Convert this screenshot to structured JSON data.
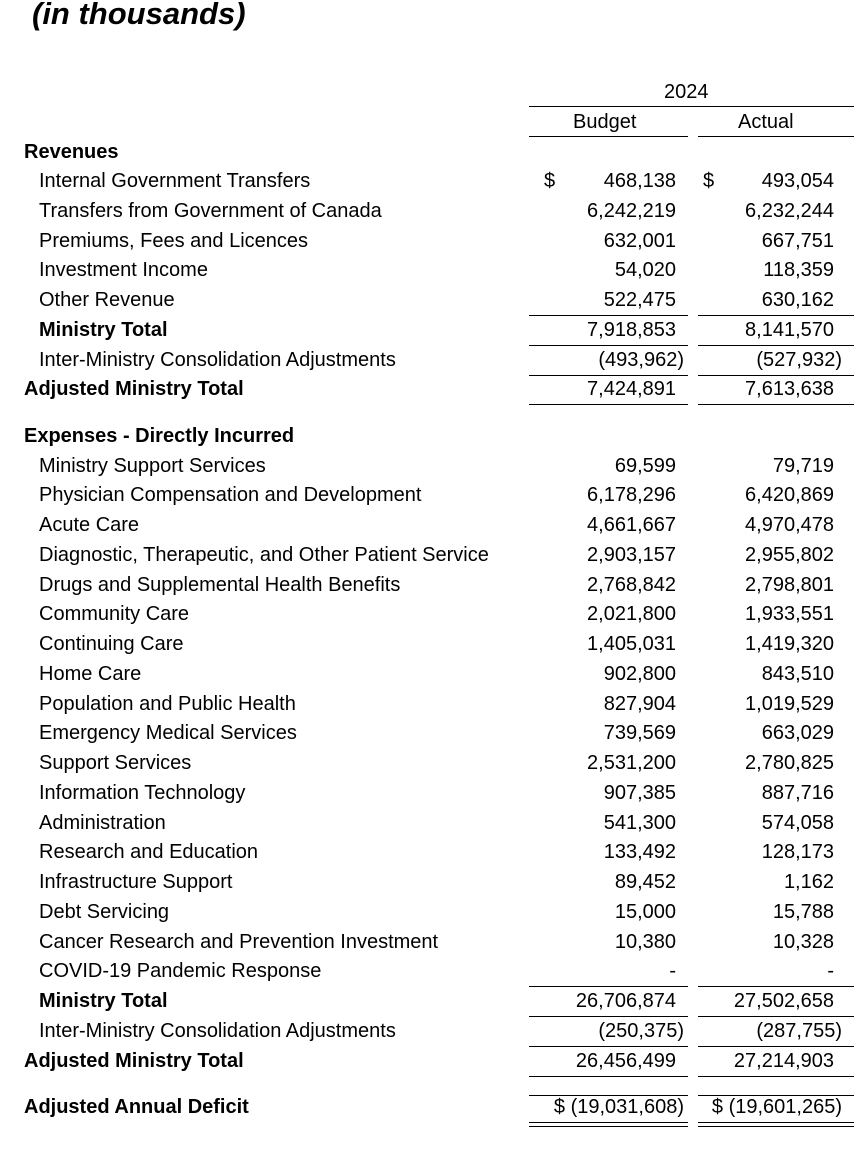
{
  "subtitle": "(in thousands)",
  "header": {
    "year": "2024",
    "col_budget": "Budget",
    "col_actual": "Actual"
  },
  "rows": [
    {
      "label": "Revenues",
      "kind": "section"
    },
    {
      "label": "Internal Government Transfers",
      "kind": "item",
      "currency": "$",
      "budget": "468,138",
      "actual": "493,054"
    },
    {
      "label": "Transfers from Government of Canada",
      "kind": "item",
      "budget": "6,242,219",
      "actual": "6,232,244"
    },
    {
      "label": "Premiums, Fees and Licences",
      "kind": "item",
      "budget": "632,001",
      "actual": "667,751"
    },
    {
      "label": "Investment Income",
      "kind": "item",
      "budget": "54,020",
      "actual": "118,359"
    },
    {
      "label": "Other Revenue",
      "kind": "item",
      "budget": "522,475",
      "actual": "630,162"
    },
    {
      "label": "Ministry Total",
      "kind": "subtotal",
      "budget": "7,918,853",
      "actual": "8,141,570"
    },
    {
      "label": "Inter-Ministry Consolidation Adjustments",
      "kind": "item",
      "budget": "(493,962)",
      "actual": "(527,932)"
    },
    {
      "label": "Adjusted Ministry Total",
      "kind": "total",
      "budget": "7,424,891",
      "actual": "7,613,638"
    },
    {
      "label": "Expenses - Directly Incurred",
      "kind": "section"
    },
    {
      "label": "Ministry Support Services",
      "kind": "item",
      "budget": "69,599",
      "actual": "79,719"
    },
    {
      "label": "Physician Compensation and Development",
      "kind": "item",
      "budget": "6,178,296",
      "actual": "6,420,869"
    },
    {
      "label": "Acute Care",
      "kind": "item",
      "budget": "4,661,667",
      "actual": "4,970,478"
    },
    {
      "label": "Diagnostic, Therapeutic, and Other Patient Service",
      "kind": "item",
      "budget": "2,903,157",
      "actual": "2,955,802"
    },
    {
      "label": "Drugs and Supplemental Health Benefits",
      "kind": "item",
      "budget": "2,768,842",
      "actual": "2,798,801"
    },
    {
      "label": "Community Care",
      "kind": "item",
      "budget": "2,021,800",
      "actual": "1,933,551"
    },
    {
      "label": "Continuing Care",
      "kind": "item",
      "budget": "1,405,031",
      "actual": "1,419,320"
    },
    {
      "label": "Home Care",
      "kind": "item",
      "budget": "902,800",
      "actual": "843,510"
    },
    {
      "label": "Population and Public Health",
      "kind": "item",
      "budget": "827,904",
      "actual": "1,019,529"
    },
    {
      "label": "Emergency Medical Services",
      "kind": "item",
      "budget": "739,569",
      "actual": "663,029"
    },
    {
      "label": "Support Services",
      "kind": "item",
      "budget": "2,531,200",
      "actual": "2,780,825"
    },
    {
      "label": "Information Technology",
      "kind": "item",
      "budget": "907,385",
      "actual": "887,716"
    },
    {
      "label": "Administration",
      "kind": "item",
      "budget": "541,300",
      "actual": "574,058"
    },
    {
      "label": "Research and Education",
      "kind": "item",
      "budget": "133,492",
      "actual": "128,173"
    },
    {
      "label": "Infrastructure Support",
      "kind": "item",
      "budget": "89,452",
      "actual": "1,162"
    },
    {
      "label": "Debt Servicing",
      "kind": "item",
      "budget": "15,000",
      "actual": "15,788"
    },
    {
      "label": "Cancer Research and Prevention Investment",
      "kind": "item",
      "budget": "10,380",
      "actual": "10,328"
    },
    {
      "label": "COVID-19 Pandemic Response",
      "kind": "item",
      "budget": "-",
      "actual": "-"
    },
    {
      "label": "Ministry Total",
      "kind": "subtotal",
      "budget": "26,706,874",
      "actual": "27,502,658"
    },
    {
      "label": "Inter-Ministry Consolidation Adjustments",
      "kind": "item",
      "budget": "(250,375)",
      "actual": "(287,755)"
    },
    {
      "label": "Adjusted Ministry Total",
      "kind": "total",
      "budget": "26,456,499",
      "actual": "27,214,903"
    },
    {
      "label": "Adjusted Annual Deficit",
      "kind": "grand",
      "budget": "$ (19,031,608)",
      "actual": "$ (19,601,265)"
    }
  ]
}
